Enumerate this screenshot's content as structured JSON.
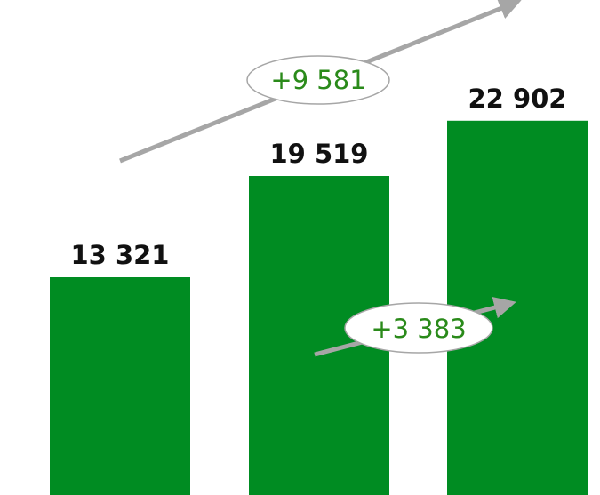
{
  "chart_data": {
    "type": "bar",
    "categories": [
      "",
      "",
      ""
    ],
    "values": [
      13321,
      19519,
      22902
    ],
    "value_labels": [
      "13 321",
      "19 519",
      "22 902"
    ],
    "ylim": [
      0,
      30000
    ],
    "grid": false,
    "annotations": [
      {
        "text": "+9 581",
        "from_index": 0,
        "to_index": 2
      },
      {
        "text": "+3 383",
        "from_index": 1,
        "to_index": 2
      }
    ]
  },
  "colors": {
    "bar": "#008c22",
    "arrow": "#a6a6a6",
    "annotation_text": "#2a8a1a",
    "label_text": "#111111"
  }
}
